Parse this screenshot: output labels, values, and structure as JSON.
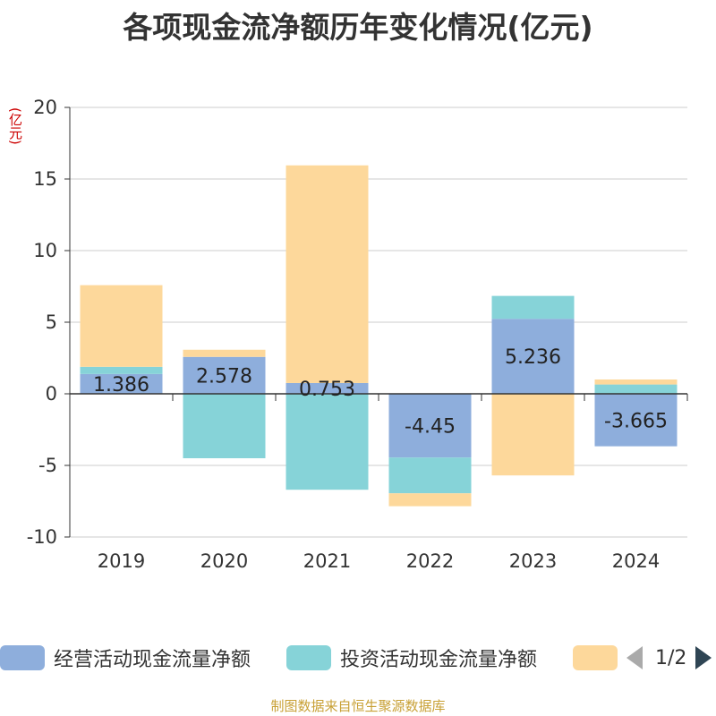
{
  "title": "各项现金流净额历年变化情况(亿元)",
  "unit": "(亿元)",
  "source": "制图数据来自恒生聚源数据库",
  "legend": {
    "items": [
      {
        "name": "经营活动现金流量净额",
        "color": "#8eaedc"
      },
      {
        "name": "投资活动现金流量净额",
        "color": "#86d3d8"
      },
      {
        "name": "",
        "color": "#fdd89b"
      }
    ],
    "page": "1/2"
  },
  "chart_data": {
    "type": "bar",
    "stacked": true,
    "categories": [
      "2019",
      "2020",
      "2021",
      "2022",
      "2023",
      "2024"
    ],
    "series": [
      {
        "name": "经营活动现金流量净额",
        "color": "#8eaedc",
        "values": [
          1.386,
          2.578,
          0.753,
          -4.45,
          5.236,
          -3.665
        ],
        "labels": true
      },
      {
        "name": "投资活动现金流量净额",
        "color": "#86d3d8",
        "values": [
          0.5,
          -4.5,
          -6.7,
          -2.5,
          1.6,
          0.65
        ],
        "labels": false
      },
      {
        "name": "",
        "color": "#fdd89b",
        "values": [
          5.7,
          0.5,
          15.2,
          -0.9,
          -5.7,
          0.35
        ],
        "labels": false
      }
    ],
    "ylim": [
      -10,
      20
    ],
    "yticks": [
      -10,
      -5,
      0,
      5,
      10,
      15,
      20
    ],
    "grid": true,
    "legend_position": "bottom"
  }
}
